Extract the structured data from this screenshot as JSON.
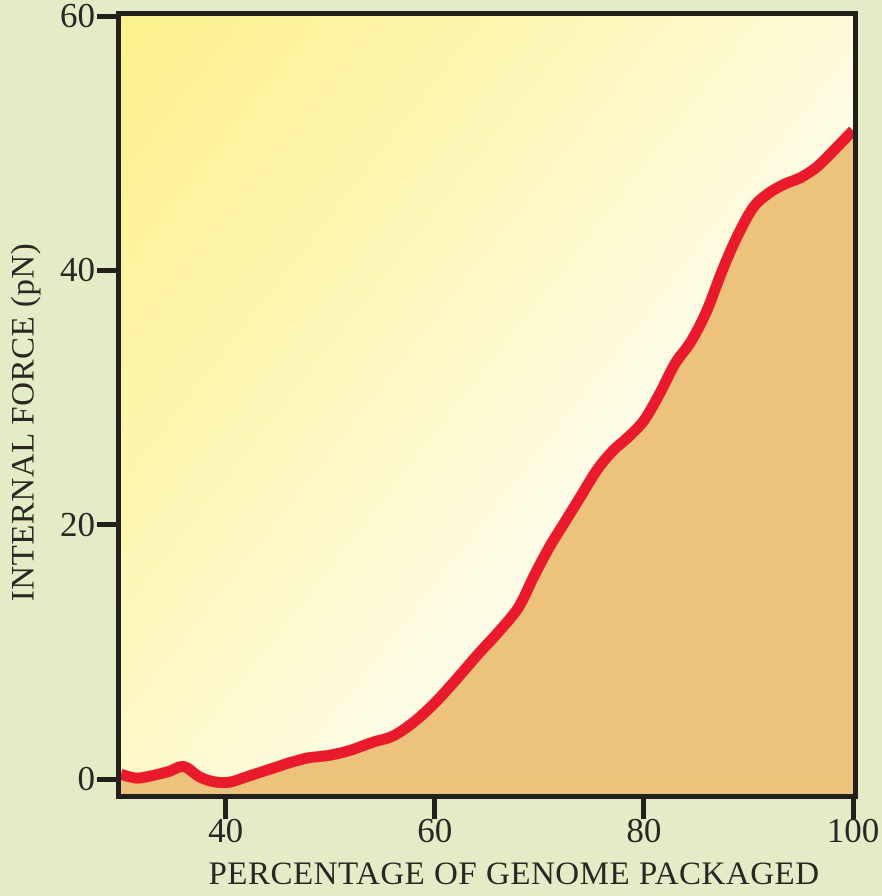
{
  "figure": {
    "background_color": "#e3ecc6"
  },
  "colors": {
    "plot_gradient_topleft": "#fbf18c",
    "plot_gradient_bottomright": "#fefce6",
    "area_fill": "#ecc27c",
    "curve": "#e81a2b",
    "axis": "#231f1a",
    "text": "#2b2523"
  },
  "chart_data": {
    "type": "area",
    "title": "",
    "xlabel": "PERCENTAGE OF GENOME PACKAGED",
    "ylabel": "INTERNAL FORCE (pN)",
    "xlim": [
      30,
      100
    ],
    "ylim": [
      -1.15,
      60
    ],
    "x_ticks": [
      40,
      60,
      80,
      100
    ],
    "y_ticks": [
      0,
      20,
      40,
      60
    ],
    "grid": false,
    "legend": "none",
    "series": [
      {
        "name": "internal-force",
        "color": "#e81a2b",
        "fill_color": "#ecc27c",
        "points": [
          [
            30,
            0.4
          ],
          [
            31.5,
            0.1
          ],
          [
            33,
            0.3
          ],
          [
            34.5,
            0.6
          ],
          [
            36,
            1.0
          ],
          [
            37.5,
            0.2
          ],
          [
            39,
            -0.2
          ],
          [
            40.5,
            -0.2
          ],
          [
            42,
            0.2
          ],
          [
            43.5,
            0.6
          ],
          [
            45,
            1.0
          ],
          [
            46.5,
            1.4
          ],
          [
            48,
            1.7
          ],
          [
            50,
            1.9
          ],
          [
            52,
            2.3
          ],
          [
            54,
            2.9
          ],
          [
            56,
            3.4
          ],
          [
            58,
            4.5
          ],
          [
            60,
            6.0
          ],
          [
            62,
            7.8
          ],
          [
            64,
            9.7
          ],
          [
            66,
            11.5
          ],
          [
            68,
            13.5
          ],
          [
            69.5,
            16.0
          ],
          [
            71,
            18.3
          ],
          [
            72.5,
            20.3
          ],
          [
            74,
            22.3
          ],
          [
            75.5,
            24.3
          ],
          [
            77,
            25.8
          ],
          [
            78.5,
            26.9
          ],
          [
            80,
            28.2
          ],
          [
            81.5,
            30.3
          ],
          [
            83,
            32.7
          ],
          [
            84.5,
            34.4
          ],
          [
            86,
            36.8
          ],
          [
            87.5,
            40.0
          ],
          [
            89,
            42.8
          ],
          [
            90.5,
            45.0
          ],
          [
            92,
            46.1
          ],
          [
            93.5,
            46.8
          ],
          [
            95,
            47.3
          ],
          [
            96.5,
            48.1
          ],
          [
            98,
            49.3
          ],
          [
            100,
            51.0
          ]
        ]
      }
    ]
  }
}
